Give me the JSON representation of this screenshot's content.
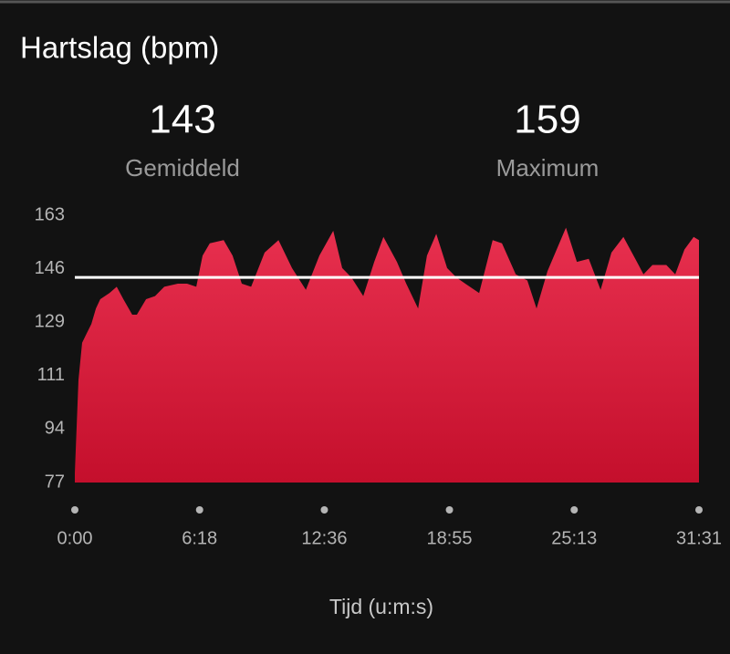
{
  "chart_data": {
    "type": "area",
    "title": "Hartslag (bpm)",
    "stats": [
      {
        "value": 143,
        "label": "Gemiddeld"
      },
      {
        "value": 159,
        "label": "Maximum"
      }
    ],
    "x_label": "Tijd (u:m:s)",
    "color": "#e8304f",
    "x": [
      0,
      11,
      22,
      36,
      50,
      64,
      77,
      105,
      127,
      147,
      174,
      188,
      216,
      243,
      271,
      312,
      340,
      368,
      387,
      409,
      451,
      478,
      506,
      534,
      575,
      617,
      658,
      700,
      741,
      783,
      810,
      838,
      874,
      907,
      935,
      976,
      1004,
      1040,
      1067,
      1095,
      1128,
      1156,
      1183,
      1225,
      1266,
      1294,
      1336,
      1371,
      1399,
      1432,
      1488,
      1521,
      1557,
      1593,
      1626,
      1662,
      1703,
      1723,
      1750,
      1792,
      1819,
      1847,
      1875,
      1891
    ],
    "values": [
      80,
      110,
      122,
      125,
      128,
      133,
      136,
      138,
      140,
      136,
      131,
      131,
      136,
      137,
      140,
      141,
      141,
      140,
      150,
      154,
      155,
      150,
      141,
      140,
      151,
      155,
      146,
      139,
      150,
      158,
      146,
      143,
      137,
      148,
      156,
      148,
      141,
      133,
      150,
      157,
      146,
      143,
      141,
      138,
      155,
      154,
      144,
      142,
      133,
      145,
      159,
      148,
      149,
      139,
      151,
      156,
      148,
      144,
      147,
      147,
      144,
      152,
      156,
      155
    ],
    "xlim": [
      0,
      1891
    ],
    "xticks": [
      {
        "value": 0,
        "label": "0:00"
      },
      {
        "value": 378,
        "label": "6:18"
      },
      {
        "value": 756,
        "label": "12:36"
      },
      {
        "value": 1135,
        "label": "18:55"
      },
      {
        "value": 1513,
        "label": "25:13"
      },
      {
        "value": 1891,
        "label": "31:31"
      }
    ],
    "ylim": [
      77,
      163
    ],
    "yticks": [
      77,
      {
        "value": 94.2,
        "label": "94"
      },
      {
        "value": 111.4,
        "label": "111"
      },
      {
        "value": 128.6,
        "label": "129"
      },
      {
        "value": 145.8,
        "label": "146"
      },
      163
    ]
  }
}
